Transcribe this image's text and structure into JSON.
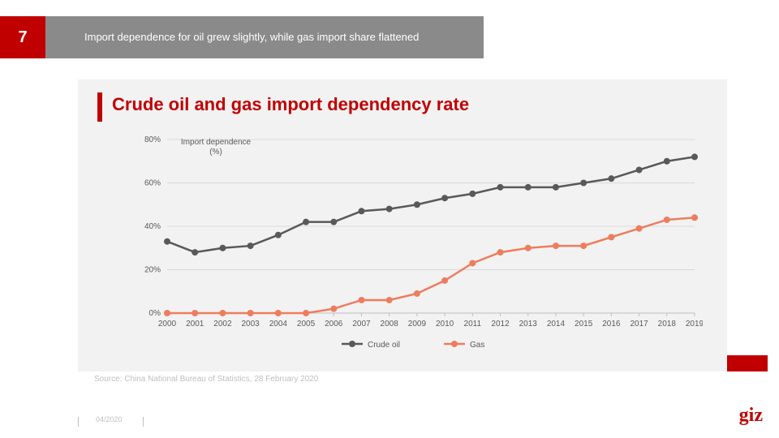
{
  "slide_number": "7",
  "header_text": "Import dependence for oil grew slightly, while gas import share flattened",
  "chart": {
    "type": "line",
    "title": "Crude oil and gas import dependency rate",
    "y_axis_label": "Import dependence (%)",
    "background_color": "#f2f2f2",
    "title_color": "#c00000",
    "title_fontsize": 22,
    "grid_color": "#d9d9d9",
    "axis_color": "#bfbfbf",
    "text_color": "#595959",
    "ylim": [
      0,
      80
    ],
    "ytick_step": 20,
    "ytick_format": "{v}%",
    "x_categories": [
      "2000",
      "2001",
      "2002",
      "2003",
      "2004",
      "2005",
      "2006",
      "2007",
      "2008",
      "2009",
      "2010",
      "2011",
      "2012",
      "2013",
      "2014",
      "2015",
      "2016",
      "2017",
      "2018",
      "2019"
    ],
    "series": [
      {
        "name": "Crude oil",
        "color": "#595959",
        "line_width": 2.5,
        "marker": "circle",
        "marker_size": 4,
        "values": [
          33,
          28,
          30,
          31,
          36,
          42,
          42,
          47,
          48,
          50,
          53,
          55,
          58,
          58,
          58,
          60,
          62,
          66,
          70,
          72
        ]
      },
      {
        "name": "Gas",
        "color": "#ed7d5e",
        "line_width": 2.5,
        "marker": "circle",
        "marker_size": 4,
        "values": [
          0,
          0,
          0,
          0,
          0,
          0,
          2,
          6,
          6,
          9,
          15,
          23,
          28,
          30,
          31,
          31,
          35,
          39,
          43,
          44
        ]
      }
    ],
    "legend_position": "bottom"
  },
  "source_note": "Source: China National Bureau of Statistics, 28 February 2020",
  "footer_date": "04/2020",
  "logo_text": "giz",
  "colors": {
    "accent_red": "#c00000",
    "header_gray": "#8a8a8a",
    "panel_bg": "#f2f2f2",
    "muted_text": "#bfbfbf"
  }
}
